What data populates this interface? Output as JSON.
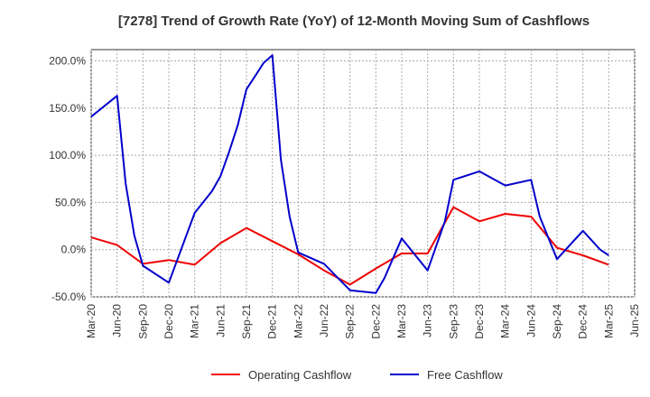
{
  "chart_data": {
    "type": "line",
    "title": "[7278]  Trend of Growth Rate (YoY) of 12-Month Moving Sum of Cashflows",
    "xlabel": "",
    "ylabel": "",
    "x": [
      "Mar-20",
      "Apr-20",
      "May-20",
      "Jun-20",
      "Jul-20",
      "Aug-20",
      "Sep-20",
      "Oct-20",
      "Nov-20",
      "Dec-20",
      "Jan-21",
      "Feb-21",
      "Mar-21",
      "Apr-21",
      "May-21",
      "Jun-21",
      "Jul-21",
      "Aug-21",
      "Sep-21",
      "Oct-21",
      "Nov-21",
      "Dec-21",
      "Jan-22",
      "Feb-22",
      "Mar-22",
      "Apr-22",
      "May-22",
      "Jun-22",
      "Jul-22",
      "Aug-22",
      "Sep-22",
      "Oct-22",
      "Nov-22",
      "Dec-22",
      "Jan-23",
      "Feb-23",
      "Mar-23",
      "Apr-23",
      "May-23",
      "Jun-23",
      "Jul-23",
      "Aug-23",
      "Sep-23",
      "Oct-23",
      "Nov-23",
      "Dec-23",
      "Jan-24",
      "Feb-24",
      "Mar-24",
      "Apr-24",
      "May-24",
      "Jun-24",
      "Jul-24",
      "Aug-24",
      "Sep-24",
      "Oct-24",
      "Nov-24",
      "Dec-24",
      "Jan-25",
      "Feb-25",
      "Mar-25",
      "Apr-25",
      "May-25",
      "Jun-25"
    ],
    "x_tick_labels": [
      "Mar-20",
      "Jun-20",
      "Sep-20",
      "Dec-20",
      "Mar-21",
      "Jun-21",
      "Sep-21",
      "Dec-21",
      "Mar-22",
      "Jun-22",
      "Sep-22",
      "Dec-22",
      "Mar-23",
      "Jun-23",
      "Sep-23",
      "Dec-23",
      "Mar-24",
      "Jun-24",
      "Sep-24",
      "Dec-24",
      "Mar-25",
      "Jun-25"
    ],
    "y_tick_labels": [
      "200.0%",
      "150.0%",
      "100.0%",
      "50.0%",
      "0.0%",
      "-50.0%"
    ],
    "y_ticks": [
      200,
      150,
      100,
      50,
      0,
      -50
    ],
    "ylim": [
      -50,
      212
    ],
    "grid": true,
    "legend_position": "bottom-center",
    "series": [
      {
        "name": "Operating Cashflow",
        "color": "#ee0000",
        "points": [
          [
            0,
            13
          ],
          [
            3,
            5
          ],
          [
            6,
            -15
          ],
          [
            9,
            -11
          ],
          [
            12,
            -16
          ],
          [
            15,
            7
          ],
          [
            18,
            23
          ],
          [
            21,
            9
          ],
          [
            24,
            -5
          ],
          [
            27,
            -22
          ],
          [
            30,
            -37
          ],
          [
            33,
            -20
          ],
          [
            36,
            -4
          ],
          [
            39,
            -4
          ],
          [
            42,
            45
          ],
          [
            45,
            30
          ],
          [
            48,
            38
          ],
          [
            51,
            35
          ],
          [
            54,
            2
          ],
          [
            57,
            -6
          ],
          [
            60,
            -16
          ]
        ]
      },
      {
        "name": "Free Cashflow",
        "color": "#0000cc",
        "points": [
          [
            0,
            141
          ],
          [
            3,
            163
          ],
          [
            4,
            70
          ],
          [
            5,
            15
          ],
          [
            6,
            -17
          ],
          [
            9,
            -35
          ],
          [
            12,
            39
          ],
          [
            14,
            62
          ],
          [
            15,
            78
          ],
          [
            16,
            104
          ],
          [
            17,
            132
          ],
          [
            18,
            170
          ],
          [
            19,
            184
          ],
          [
            20,
            198
          ],
          [
            21,
            206
          ],
          [
            22,
            95
          ],
          [
            23,
            35
          ],
          [
            24,
            -3
          ],
          [
            27,
            -15
          ],
          [
            30,
            -43
          ],
          [
            33,
            -46
          ],
          [
            34,
            -30
          ],
          [
            36,
            12
          ],
          [
            39,
            -22
          ],
          [
            41,
            30
          ],
          [
            42,
            74
          ],
          [
            45,
            83
          ],
          [
            48,
            68
          ],
          [
            51,
            74
          ],
          [
            52,
            35
          ],
          [
            54,
            -10
          ],
          [
            57,
            20
          ],
          [
            59,
            0
          ],
          [
            60,
            -6
          ]
        ]
      }
    ]
  }
}
